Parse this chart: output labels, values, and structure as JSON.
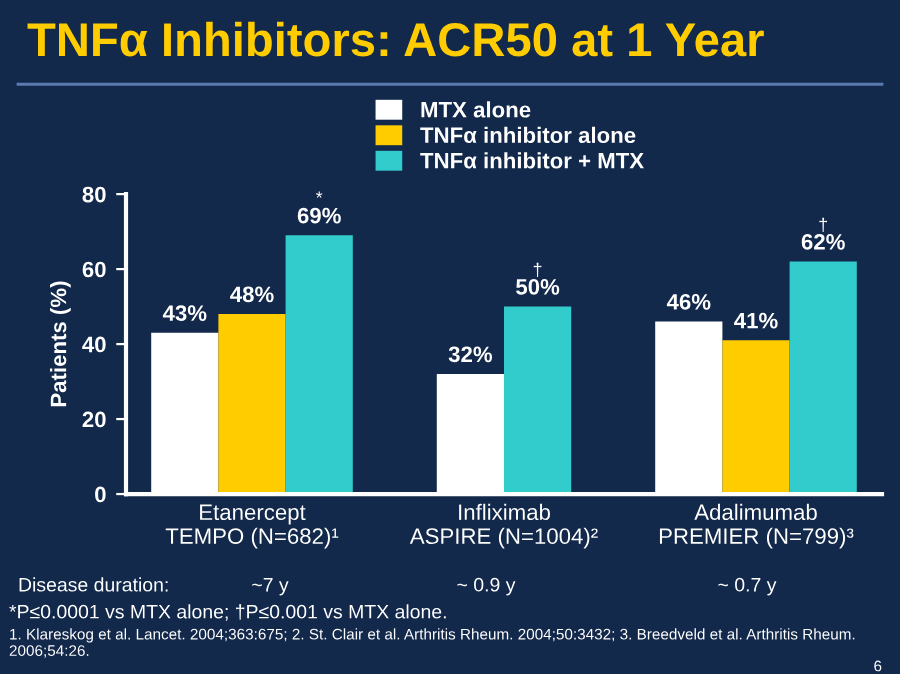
{
  "chart_data": {
    "type": "bar",
    "title": "TNFα Inhibitors: ACR50 at 1 Year",
    "ylabel": "Patients (%)",
    "categories": [
      "Etanercept\nTEMPO (N=682)¹",
      "Infliximab\nASPIRE (N=1004)²",
      "Adalimumab\nPREMIER (N=799)³"
    ],
    "series": [
      {
        "name": "MTX alone",
        "color": "#ffffff",
        "values": [
          43,
          32,
          46
        ],
        "value_labels": [
          "43%",
          "32%",
          "46%"
        ]
      },
      {
        "name": "TNFα inhibitor alone",
        "color": "#ffcc00",
        "values": [
          48,
          null,
          41
        ],
        "value_labels": [
          "48%",
          null,
          "41%"
        ]
      },
      {
        "name": "TNFα inhibitor + MTX",
        "color": "#33cccc",
        "values": [
          69,
          50,
          62
        ],
        "value_labels": [
          "69%",
          "50%",
          "62%"
        ]
      }
    ],
    "ylim": [
      0,
      80
    ],
    "yticks": [
      0,
      20,
      40,
      60,
      80
    ],
    "grid": false,
    "legend": "top",
    "annotations": [
      "*",
      "†",
      "†",
      "Disease duration:",
      "~7 y",
      "~ 0.9 y",
      "~ 0.7 y",
      "*P≤0.0001 vs MTX alone; †P≤0.001 vs MTX alone.",
      "1. Klareskog et al. Lancet. 2004;363:675; 2. St. Clair et al. Arthritis Rheum. 2004;50:3432; 3. Breedveld et al. Arthritis Rheum. 2006;54:26.",
      "6"
    ]
  }
}
